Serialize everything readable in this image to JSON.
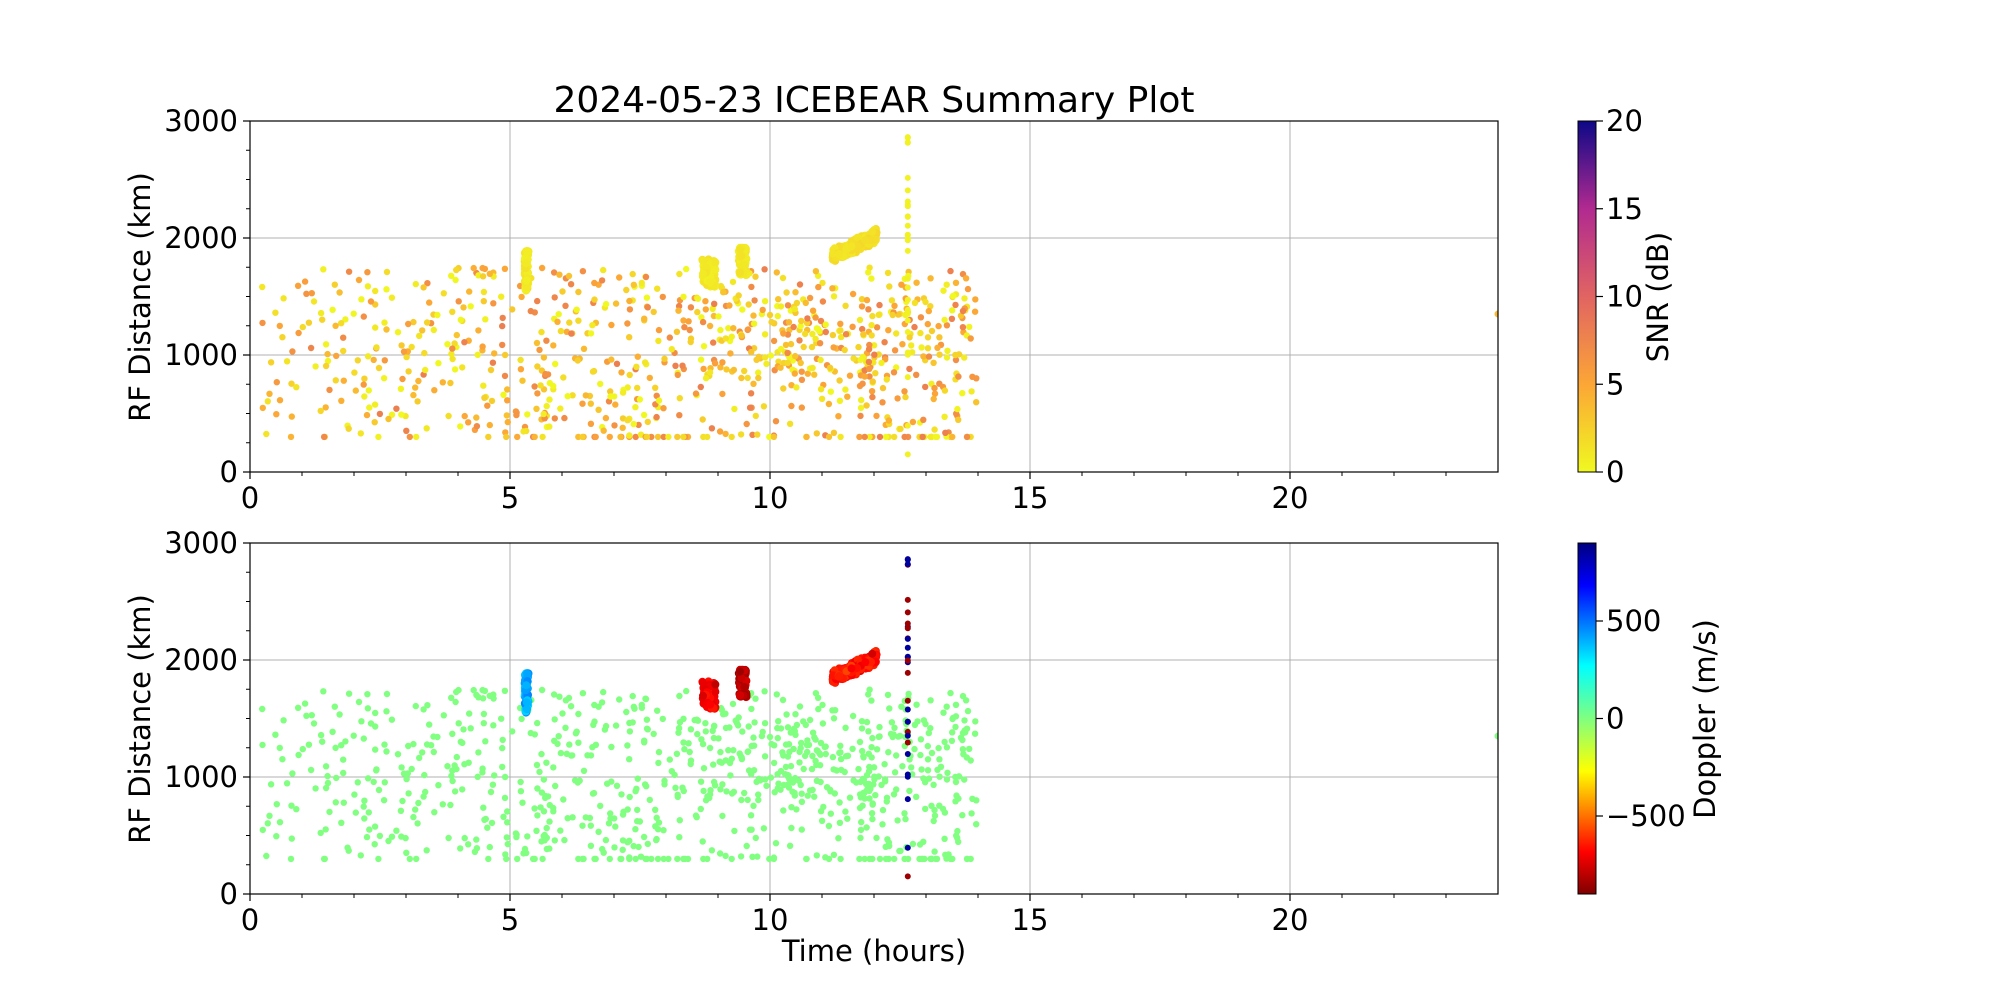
{
  "chart_data": [
    {
      "type": "scatter",
      "title": "2024-05-23 ICEBEAR Summary Plot",
      "xlabel": "",
      "ylabel": "RF Distance (km)",
      "xlim": [
        0,
        24
      ],
      "ylim": [
        0,
        3000
      ],
      "xticks": [
        "0",
        "5",
        "10",
        "15",
        "20"
      ],
      "yticks": [
        "0",
        "1000",
        "2000",
        "3000"
      ],
      "grid": true,
      "color_variable": "SNR (dB)",
      "colormap": "plasma_r",
      "colorbar": {
        "label": "SNR (dB)",
        "range": [
          0,
          20
        ],
        "ticks": [
          "0",
          "5",
          "10",
          "15",
          "20"
        ]
      },
      "clusters": [
        {
          "x": [
            5.28,
            5.36
          ],
          "y": [
            1550,
            1900
          ],
          "value": 0.5
        },
        {
          "x": [
            8.7,
            8.95
          ],
          "y": [
            1580,
            1820
          ],
          "value": 0.5
        },
        {
          "x": [
            9.4,
            9.55
          ],
          "y": [
            1680,
            1920
          ],
          "value": 0.5
        },
        {
          "x": [
            11.2,
            12.05
          ],
          "y": [
            1780,
            2080
          ],
          "value": 1.0
        }
      ],
      "background_scatter": {
        "x": [
          0,
          14
        ],
        "y": [
          300,
          1750
        ],
        "value_range": [
          0,
          8
        ]
      },
      "vertical_streak": {
        "x": 12.65,
        "y": [
          100,
          2900
        ]
      },
      "isolated_point": {
        "x": 24.0,
        "y": 1350
      }
    },
    {
      "type": "scatter",
      "title": "",
      "xlabel": "Time (hours)",
      "ylabel": "RF Distance (km)",
      "xlim": [
        0,
        24
      ],
      "ylim": [
        0,
        3000
      ],
      "xticks": [
        "0",
        "5",
        "10",
        "15",
        "20"
      ],
      "yticks": [
        "0",
        "1000",
        "2000",
        "3000"
      ],
      "grid": true,
      "color_variable": "Doppler (m/s)",
      "colormap": "jet_r",
      "colorbar": {
        "label": "Doppler (m/s)",
        "range": [
          -900,
          900
        ],
        "ticks": [
          "−500",
          "0",
          "500"
        ]
      },
      "clusters": [
        {
          "x": [
            5.28,
            5.36
          ],
          "y": [
            1550,
            1900
          ],
          "value": 400
        },
        {
          "x": [
            8.7,
            8.95
          ],
          "y": [
            1580,
            1820
          ],
          "value": -700
        },
        {
          "x": [
            9.4,
            9.55
          ],
          "y": [
            1680,
            1920
          ],
          "value": -800
        },
        {
          "x": [
            11.2,
            12.05
          ],
          "y": [
            1780,
            2080
          ],
          "value": -650
        }
      ],
      "background_scatter": {
        "x": [
          0,
          14
        ],
        "y": [
          300,
          1750
        ],
        "value": 0
      },
      "vertical_streak": {
        "x": 12.65,
        "y": [
          100,
          2900
        ],
        "values": [
          850,
          -850
        ]
      },
      "isolated_point": {
        "x": 24.0,
        "y": 1350
      }
    }
  ]
}
